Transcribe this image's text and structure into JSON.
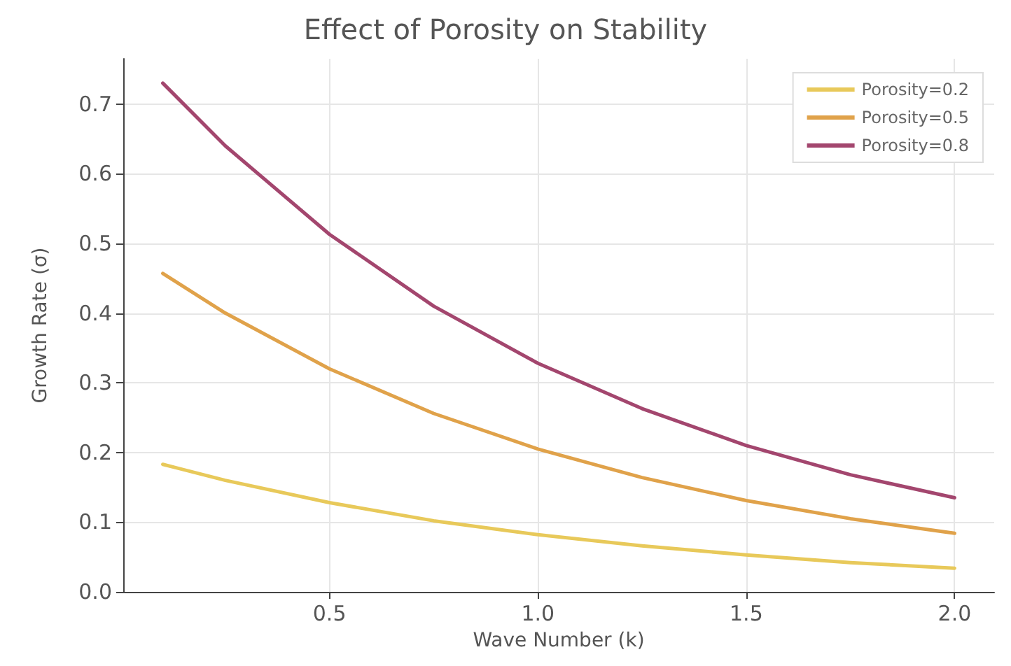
{
  "chart_data": {
    "type": "line",
    "title": "Effect of Porosity on Stability",
    "xlabel": "Wave Number (k)",
    "ylabel": "Growth Rate (σ)",
    "x": [
      0.1,
      0.25,
      0.5,
      0.75,
      1.0,
      1.25,
      1.5,
      1.75,
      2.0
    ],
    "series": [
      {
        "name": "Porosity=0.2",
        "color": "#e8c95a",
        "values": [
          0.183,
          0.16,
          0.128,
          0.102,
          0.082,
          0.066,
          0.053,
          0.042,
          0.034
        ]
      },
      {
        "name": "Porosity=0.5",
        "color": "#e0a24a",
        "values": [
          0.457,
          0.4,
          0.32,
          0.256,
          0.205,
          0.164,
          0.131,
          0.105,
          0.084
        ]
      },
      {
        "name": "Porosity=0.8",
        "color": "#a3466e",
        "values": [
          0.73,
          0.64,
          0.513,
          0.41,
          0.328,
          0.263,
          0.21,
          0.168,
          0.135
        ]
      }
    ],
    "xlim": [
      0.005,
      2.095
    ],
    "xticks": [
      {
        "value": 0.5,
        "label": "0.5"
      },
      {
        "value": 1.0,
        "label": "1.0"
      },
      {
        "value": 1.5,
        "label": "1.5"
      },
      {
        "value": 2.0,
        "label": "2.0"
      }
    ],
    "ylim": [
      0,
      0.765
    ],
    "yticks": [
      {
        "value": 0,
        "label": "0.0"
      },
      0.1,
      0.2,
      0.3,
      0.4,
      0.5,
      0.6,
      0.7
    ],
    "grid": true,
    "legend": "top right",
    "marker": "none",
    "line_style": "solid"
  }
}
